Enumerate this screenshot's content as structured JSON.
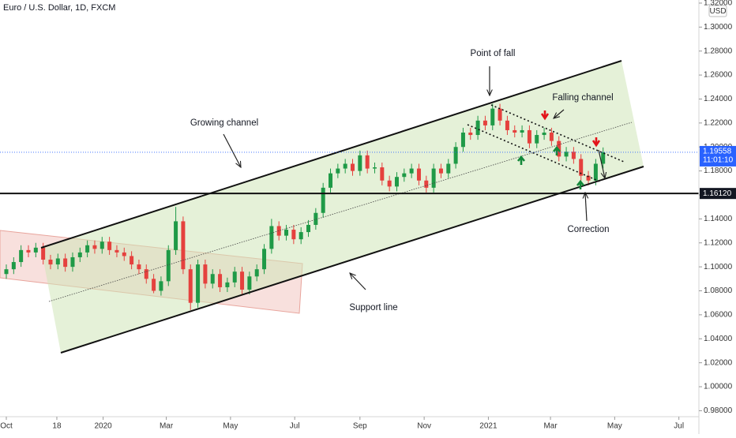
{
  "chart_data": {
    "type": "candlestick",
    "title": "Euro / U.S. Dollar, 1D, FXCM",
    "currency": "USD",
    "annotations": [
      "Point of fall",
      "Falling channel",
      "Growing channel",
      "Support line",
      "Correction"
    ],
    "x": [
      "2019-10-01",
      "2019-10-08",
      "2019-10-15",
      "2019-10-22",
      "2019-10-29",
      "2019-11-05",
      "2019-11-12",
      "2019-11-19",
      "2019-11-26",
      "2019-12-03",
      "2019-12-10",
      "2019-12-17",
      "2019-12-24",
      "2019-12-31",
      "2020-01-07",
      "2020-01-14",
      "2020-01-21",
      "2020-01-28",
      "2020-02-04",
      "2020-02-11",
      "2020-02-18",
      "2020-02-25",
      "2020-03-03",
      "2020-03-10",
      "2020-03-17",
      "2020-03-24",
      "2020-03-31",
      "2020-04-07",
      "2020-04-14",
      "2020-04-21",
      "2020-04-28",
      "2020-05-05",
      "2020-05-12",
      "2020-05-19",
      "2020-05-26",
      "2020-06-02",
      "2020-06-09",
      "2020-06-16",
      "2020-06-23",
      "2020-06-30",
      "2020-07-07",
      "2020-07-14",
      "2020-07-21",
      "2020-07-28",
      "2020-08-04",
      "2020-08-11",
      "2020-08-18",
      "2020-08-25",
      "2020-09-01",
      "2020-09-08",
      "2020-09-15",
      "2020-09-22",
      "2020-09-29",
      "2020-10-06",
      "2020-10-13",
      "2020-10-20",
      "2020-10-27",
      "2020-11-03",
      "2020-11-10",
      "2020-11-17",
      "2020-11-24",
      "2020-12-01",
      "2020-12-08",
      "2020-12-15",
      "2020-12-22",
      "2020-12-29",
      "2021-01-05",
      "2021-01-12",
      "2021-01-19",
      "2021-01-26",
      "2021-02-02",
      "2021-02-09",
      "2021-02-16",
      "2021-02-23",
      "2021-03-02",
      "2021-03-09",
      "2021-03-16",
      "2021-03-23",
      "2021-03-30",
      "2021-04-06",
      "2021-04-13",
      "2021-04-20"
    ],
    "open": [
      1.094,
      1.098,
      1.104,
      1.114,
      1.112,
      1.116,
      1.106,
      1.102,
      1.107,
      1.1,
      1.108,
      1.112,
      1.118,
      1.115,
      1.121,
      1.114,
      1.112,
      1.109,
      1.102,
      1.098,
      1.09,
      1.08,
      1.088,
      1.114,
      1.138,
      1.098,
      1.07,
      1.102,
      1.086,
      1.094,
      1.083,
      1.087,
      1.096,
      1.081,
      1.092,
      1.098,
      1.115,
      1.134,
      1.126,
      1.131,
      1.123,
      1.129,
      1.135,
      1.145,
      1.166,
      1.178,
      1.182,
      1.186,
      1.18,
      1.193,
      1.182,
      1.183,
      1.172,
      1.167,
      1.175,
      1.178,
      1.182,
      1.172,
      1.166,
      1.182,
      1.178,
      1.186,
      1.2,
      1.212,
      1.21,
      1.222,
      1.218,
      1.232,
      1.222,
      1.214,
      1.212,
      1.214,
      1.203,
      1.21,
      1.212,
      1.205,
      1.192,
      1.196,
      1.19,
      1.176,
      1.172,
      1.186
    ],
    "high": [
      1.102,
      1.108,
      1.118,
      1.118,
      1.12,
      1.12,
      1.11,
      1.111,
      1.111,
      1.112,
      1.116,
      1.122,
      1.122,
      1.125,
      1.125,
      1.118,
      1.116,
      1.113,
      1.106,
      1.102,
      1.094,
      1.092,
      1.118,
      1.15,
      1.142,
      1.102,
      1.106,
      1.106,
      1.098,
      1.098,
      1.091,
      1.1,
      1.1,
      1.096,
      1.102,
      1.119,
      1.14,
      1.138,
      1.135,
      1.135,
      1.133,
      1.139,
      1.149,
      1.17,
      1.182,
      1.186,
      1.19,
      1.19,
      1.197,
      1.197,
      1.187,
      1.187,
      1.176,
      1.179,
      1.182,
      1.186,
      1.186,
      1.176,
      1.186,
      1.186,
      1.19,
      1.204,
      1.216,
      1.216,
      1.226,
      1.226,
      1.236,
      1.236,
      1.226,
      1.218,
      1.218,
      1.218,
      1.214,
      1.216,
      1.216,
      1.209,
      1.2,
      1.2,
      1.194,
      1.18,
      1.19,
      1.1996
    ],
    "low": [
      1.09,
      1.094,
      1.1,
      1.108,
      1.108,
      1.102,
      1.098,
      1.098,
      1.096,
      1.096,
      1.104,
      1.108,
      1.111,
      1.111,
      1.11,
      1.108,
      1.105,
      1.098,
      1.094,
      1.086,
      1.078,
      1.076,
      1.084,
      1.11,
      1.094,
      1.064,
      1.066,
      1.082,
      1.082,
      1.079,
      1.079,
      1.083,
      1.077,
      1.077,
      1.088,
      1.094,
      1.111,
      1.122,
      1.122,
      1.119,
      1.119,
      1.125,
      1.131,
      1.141,
      1.162,
      1.174,
      1.178,
      1.176,
      1.176,
      1.178,
      1.178,
      1.168,
      1.163,
      1.163,
      1.171,
      1.174,
      1.168,
      1.162,
      1.162,
      1.174,
      1.174,
      1.182,
      1.196,
      1.206,
      1.206,
      1.214,
      1.214,
      1.218,
      1.21,
      1.208,
      1.208,
      1.199,
      1.199,
      1.206,
      1.201,
      1.188,
      1.188,
      1.186,
      1.172,
      1.168,
      1.168,
      1.182
    ],
    "close": [
      1.098,
      1.104,
      1.114,
      1.112,
      1.116,
      1.106,
      1.102,
      1.107,
      1.1,
      1.108,
      1.112,
      1.118,
      1.115,
      1.121,
      1.114,
      1.112,
      1.109,
      1.102,
      1.098,
      1.09,
      1.08,
      1.088,
      1.114,
      1.138,
      1.098,
      1.07,
      1.102,
      1.086,
      1.094,
      1.083,
      1.087,
      1.096,
      1.081,
      1.092,
      1.098,
      1.115,
      1.134,
      1.126,
      1.131,
      1.123,
      1.129,
      1.135,
      1.145,
      1.166,
      1.178,
      1.182,
      1.186,
      1.18,
      1.193,
      1.182,
      1.183,
      1.172,
      1.167,
      1.175,
      1.178,
      1.182,
      1.172,
      1.166,
      1.182,
      1.178,
      1.186,
      1.2,
      1.212,
      1.21,
      1.222,
      1.218,
      1.232,
      1.222,
      1.214,
      1.212,
      1.214,
      1.203,
      1.21,
      1.212,
      1.205,
      1.192,
      1.196,
      1.19,
      1.176,
      1.172,
      1.186,
      1.19558
    ],
    "up_color": "#1f9a47",
    "down_color": "#e5413e",
    "xlim": [
      "2019-09-25",
      "2021-07-20"
    ],
    "xticks": [
      {
        "value": "2019-10-01",
        "label": "Oct"
      },
      {
        "value": "2019-11-18",
        "label": "18"
      },
      {
        "value": "2020-01-01",
        "label": "2020"
      },
      {
        "value": "2020-03-01",
        "label": "Mar"
      },
      {
        "value": "2020-05-01",
        "label": "May"
      },
      {
        "value": "2020-07-01",
        "label": "Jul"
      },
      {
        "value": "2020-09-01",
        "label": "Sep"
      },
      {
        "value": "2020-11-01",
        "label": "Nov"
      },
      {
        "value": "2021-01-01",
        "label": "2021"
      },
      {
        "value": "2021-03-01",
        "label": "Mar"
      },
      {
        "value": "2021-05-01",
        "label": "May"
      },
      {
        "value": "2021-07-01",
        "label": "Jul"
      }
    ],
    "ylim": [
      0.975,
      1.3226
    ],
    "yticks": [
      {
        "value": 0.98,
        "label": "0.98000"
      },
      {
        "value": 1.0,
        "label": "1.00000"
      },
      {
        "value": 1.02,
        "label": "1.02000"
      },
      {
        "value": 1.04,
        "label": "1.04000"
      },
      {
        "value": 1.06,
        "label": "1.06000"
      },
      {
        "value": 1.08,
        "label": "1.08000"
      },
      {
        "value": 1.1,
        "label": "1.10000"
      },
      {
        "value": 1.12,
        "label": "1.12000"
      },
      {
        "value": 1.14,
        "label": "1.14000"
      },
      {
        "value": 1.16,
        "label": "1.16000"
      },
      {
        "value": 1.18,
        "label": "1.18000"
      },
      {
        "value": 1.2,
        "label": "1.20000"
      },
      {
        "value": 1.22,
        "label": "1.22000"
      },
      {
        "value": 1.24,
        "label": "1.24000"
      },
      {
        "value": 1.26,
        "label": "1.26000"
      },
      {
        "value": 1.28,
        "label": "1.28000"
      },
      {
        "value": 1.3,
        "label": "1.30000"
      },
      {
        "value": 1.32,
        "label": "1.32000"
      }
    ],
    "grid": false,
    "horizontal_line": {
      "value": 1.1612,
      "label": "1.16120"
    },
    "last_price": {
      "value": 1.19558,
      "label": "1.19558",
      "countdown": "11:01:10"
    }
  }
}
